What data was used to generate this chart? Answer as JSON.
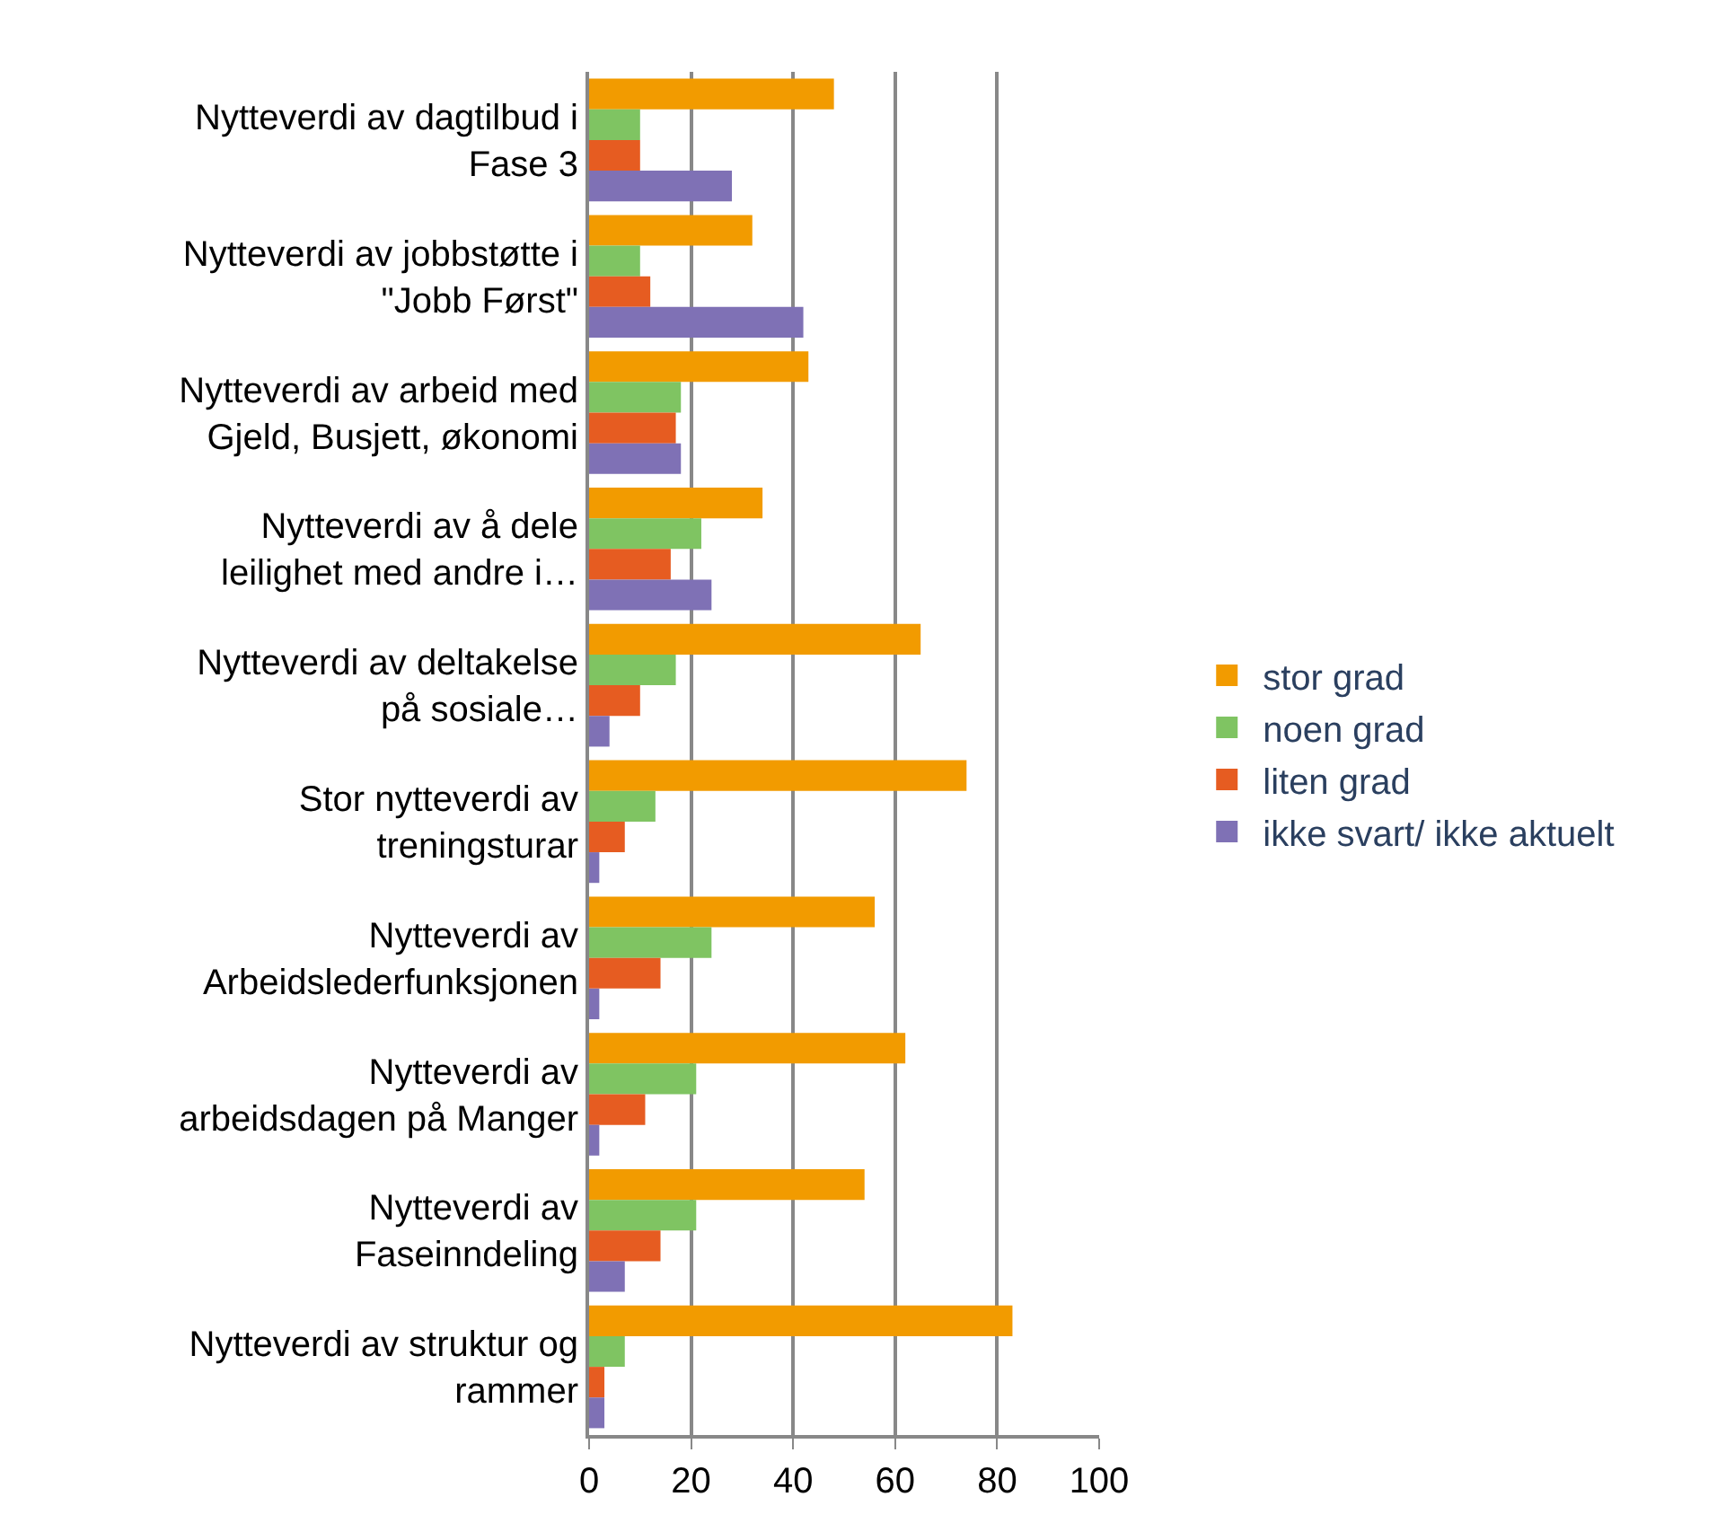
{
  "chart_data": {
    "type": "bar",
    "orientation": "horizontal",
    "categories": [
      "Nytteverdi av dagtilbud i\nFase 3",
      "Nytteverdi av jobbstøtte i\n\"Jobb Først\"",
      "Nytteverdi av arbeid med\nGjeld, Busjett, økonomi",
      "Nytteverdi av å dele\nleilighet med andre i…",
      "Nytteverdi av deltakelse\npå sosiale…",
      "Stor nytteverdi av\ntreningsturar",
      "Nytteverdi av\nArbeidslederfunksjonen",
      "Nytteverdi av\narbeidsdagen på Manger",
      "Nytteverdi av\nFaseinndeling",
      "Nytteverdi av struktur og\nrammer"
    ],
    "series": [
      {
        "name": "stor grad",
        "color": "#f29b00",
        "values": [
          48,
          32,
          43,
          34,
          65,
          74,
          56,
          62,
          54,
          83
        ]
      },
      {
        "name": "noen grad",
        "color": "#7fc462",
        "values": [
          10,
          10,
          18,
          22,
          17,
          13,
          24,
          21,
          21,
          7
        ]
      },
      {
        "name": "liten grad",
        "color": "#e65c21",
        "values": [
          10,
          12,
          17,
          16,
          10,
          7,
          14,
          11,
          14,
          3
        ]
      },
      {
        "name": "ikke svart/ ikke aktuelt",
        "color": "#7f71b5",
        "values": [
          28,
          42,
          18,
          24,
          4,
          2,
          2,
          2,
          7,
          3
        ]
      }
    ],
    "xlim": [
      0,
      100
    ],
    "xticks": [
      0,
      20,
      40,
      60,
      80,
      100
    ],
    "grid": "x",
    "legend": "right"
  }
}
